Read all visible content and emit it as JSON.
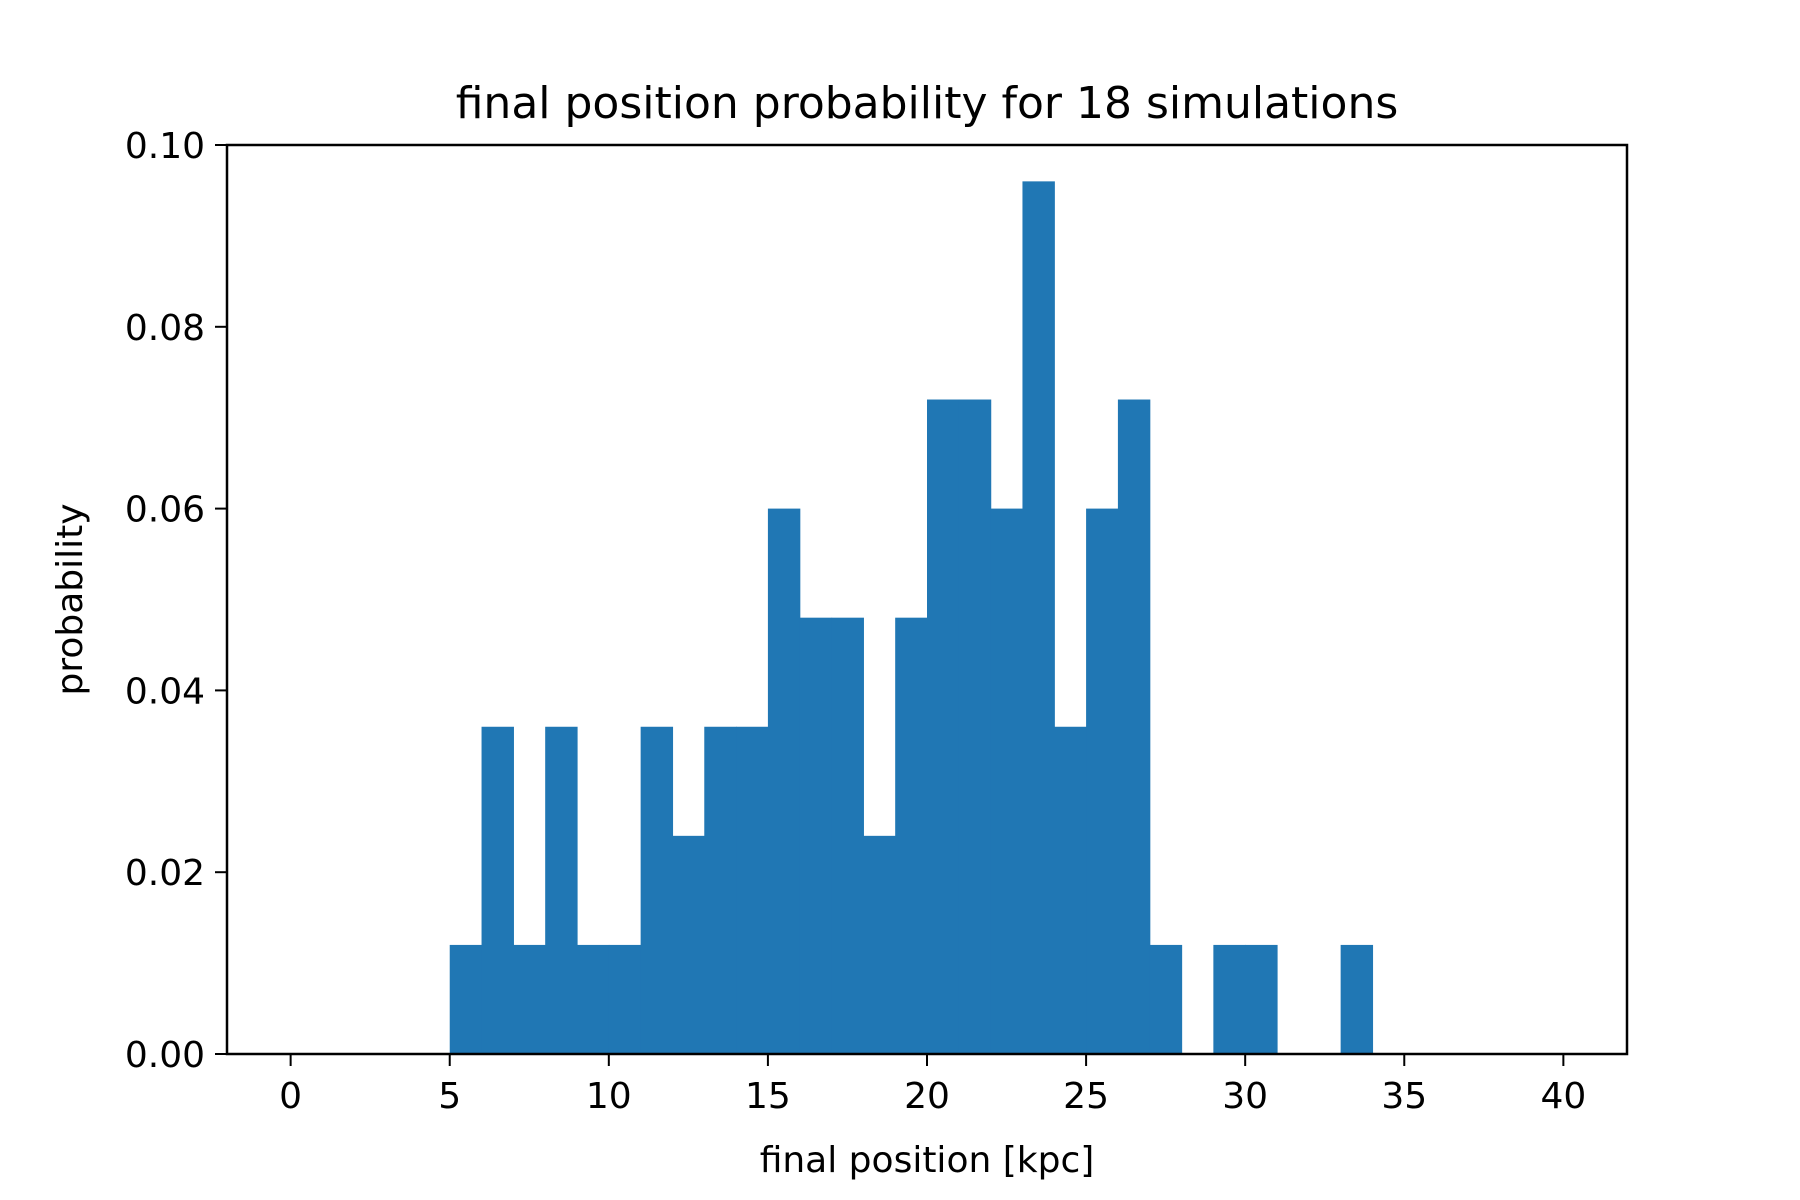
{
  "chart_data": {
    "type": "bar",
    "title": "final position probability for 18 simulations",
    "xlabel": "final position [kpc]",
    "ylabel": "probability",
    "xlim": [
      -2,
      42
    ],
    "ylim": [
      0,
      0.1
    ],
    "bar_color": "#2077b4",
    "x_ticks": [
      0,
      5,
      10,
      15,
      20,
      25,
      30,
      35,
      40
    ],
    "y_ticks": [
      0.0,
      0.02,
      0.04,
      0.06,
      0.08,
      0.1
    ],
    "x_tick_labels": [
      "0",
      "5",
      "10",
      "15",
      "20",
      "25",
      "30",
      "35",
      "40"
    ],
    "y_tick_labels": [
      "0.00",
      "0.02",
      "0.04",
      "0.06",
      "0.08",
      "0.10"
    ],
    "bins": [
      {
        "x0": 5,
        "x1": 6,
        "value": 0.012
      },
      {
        "x0": 6,
        "x1": 7,
        "value": 0.036
      },
      {
        "x0": 7,
        "x1": 8,
        "value": 0.012
      },
      {
        "x0": 8,
        "x1": 9,
        "value": 0.036
      },
      {
        "x0": 9,
        "x1": 10,
        "value": 0.012
      },
      {
        "x0": 10,
        "x1": 11,
        "value": 0.012
      },
      {
        "x0": 11,
        "x1": 12,
        "value": 0.036
      },
      {
        "x0": 12,
        "x1": 13,
        "value": 0.024
      },
      {
        "x0": 13,
        "x1": 14,
        "value": 0.036
      },
      {
        "x0": 14,
        "x1": 15,
        "value": 0.036
      },
      {
        "x0": 15,
        "x1": 16,
        "value": 0.06
      },
      {
        "x0": 16,
        "x1": 17,
        "value": 0.048
      },
      {
        "x0": 17,
        "x1": 18,
        "value": 0.048
      },
      {
        "x0": 18,
        "x1": 19,
        "value": 0.024
      },
      {
        "x0": 19,
        "x1": 20,
        "value": 0.048
      },
      {
        "x0": 20,
        "x1": 21,
        "value": 0.072
      },
      {
        "x0": 21,
        "x1": 22,
        "value": 0.072
      },
      {
        "x0": 22,
        "x1": 23,
        "value": 0.06
      },
      {
        "x0": 23,
        "x1": 24,
        "value": 0.096
      },
      {
        "x0": 24,
        "x1": 25,
        "value": 0.036
      },
      {
        "x0": 25,
        "x1": 26,
        "value": 0.06
      },
      {
        "x0": 26,
        "x1": 27,
        "value": 0.072
      },
      {
        "x0": 27,
        "x1": 28,
        "value": 0.012
      },
      {
        "x0": 28,
        "x1": 29,
        "value": 0.0
      },
      {
        "x0": 29,
        "x1": 30,
        "value": 0.012
      },
      {
        "x0": 30,
        "x1": 31,
        "value": 0.012
      },
      {
        "x0": 31,
        "x1": 32,
        "value": 0.0
      },
      {
        "x0": 32,
        "x1": 33,
        "value": 0.0
      },
      {
        "x0": 33,
        "x1": 34,
        "value": 0.012
      }
    ],
    "grid": false,
    "legend": "none"
  }
}
